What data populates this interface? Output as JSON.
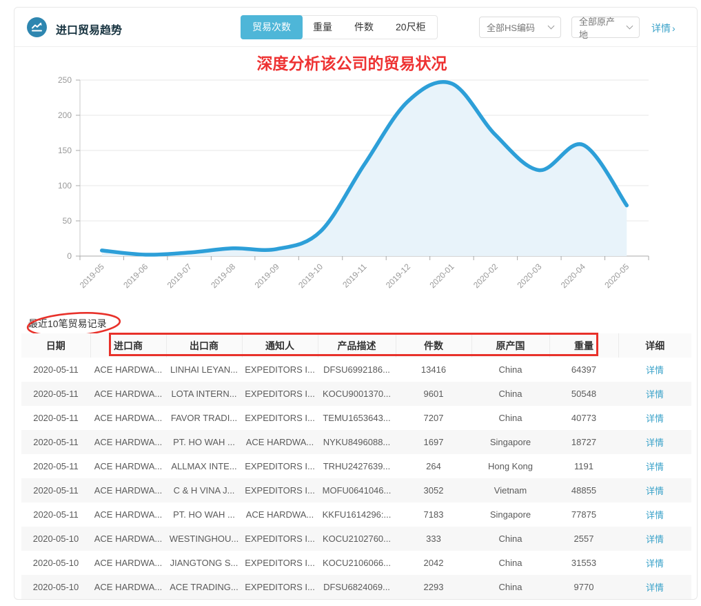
{
  "header": {
    "title": "进口贸易趋势",
    "tabs": [
      {
        "label": "贸易次数",
        "active": true
      },
      {
        "label": "重量",
        "active": false
      },
      {
        "label": "件数",
        "active": false
      },
      {
        "label": "20尺柜",
        "active": false
      }
    ],
    "filters": [
      {
        "value": "全部HS编码"
      },
      {
        "value": "全部原产地"
      }
    ],
    "details_link": "详情",
    "details_arrow": "›"
  },
  "annotations": {
    "chart_note": "深度分析该公司的贸易状况",
    "annotation_color": "#e8312a"
  },
  "chart_data": {
    "type": "area",
    "title": "",
    "x": [
      "2019-05",
      "2019-06",
      "2019-07",
      "2019-08",
      "2019-09",
      "2019-10",
      "2019-11",
      "2019-12",
      "2020-01",
      "2020-02",
      "2020-03",
      "2020-04",
      "2020-05"
    ],
    "series": [
      {
        "name": "贸易次数",
        "values": [
          8,
          2,
          5,
          11,
          10,
          35,
          130,
          220,
          245,
          172,
          122,
          158,
          72
        ]
      }
    ],
    "ylim": [
      0,
      250
    ],
    "yticks": [
      0,
      50,
      100,
      150,
      200,
      250
    ],
    "grid": true,
    "legend_position": "none",
    "line_color": "#2d9fd8",
    "fill_color": "#e8f3fa",
    "axis_color": "#a8a8a8",
    "grid_color": "#e7e7e7",
    "tick_label_color": "#999999"
  },
  "records": {
    "section_label": "最近10笔贸易记录",
    "columns": [
      "日期",
      "进口商",
      "出口商",
      "通知人",
      "产品描述",
      "件数",
      "原产国",
      "重量",
      "详细"
    ],
    "detail_label": "详情",
    "rows": [
      {
        "date": "2020-05-11",
        "importer": "ACE HARDWA...",
        "exporter": "LINHAI LEYAN...",
        "notify": "EXPEDITORS I...",
        "product": "DFSU6992186...",
        "pieces": "13416",
        "origin": "China",
        "weight": "64397"
      },
      {
        "date": "2020-05-11",
        "importer": "ACE HARDWA...",
        "exporter": "LOTA INTERN...",
        "notify": "EXPEDITORS I...",
        "product": "KOCU9001370...",
        "pieces": "9601",
        "origin": "China",
        "weight": "50548"
      },
      {
        "date": "2020-05-11",
        "importer": "ACE HARDWA...",
        "exporter": "FAVOR TRADI...",
        "notify": "EXPEDITORS I...",
        "product": "TEMU1653643...",
        "pieces": "7207",
        "origin": "China",
        "weight": "40773"
      },
      {
        "date": "2020-05-11",
        "importer": "ACE HARDWA...",
        "exporter": "PT. HO WAH ...",
        "notify": "ACE HARDWA...",
        "product": "NYKU8496088...",
        "pieces": "1697",
        "origin": "Singapore",
        "weight": "18727"
      },
      {
        "date": "2020-05-11",
        "importer": "ACE HARDWA...",
        "exporter": "ALLMAX INTE...",
        "notify": "EXPEDITORS I...",
        "product": "TRHU2427639...",
        "pieces": "264",
        "origin": "Hong Kong",
        "weight": "1191"
      },
      {
        "date": "2020-05-11",
        "importer": "ACE HARDWA...",
        "exporter": "C & H VINA J...",
        "notify": "EXPEDITORS I...",
        "product": "MOFU0641046...",
        "pieces": "3052",
        "origin": "Vietnam",
        "weight": "48855"
      },
      {
        "date": "2020-05-11",
        "importer": "ACE HARDWA...",
        "exporter": "PT. HO WAH ...",
        "notify": "ACE HARDWA...",
        "product": "KKFU1614296:...",
        "pieces": "7183",
        "origin": "Singapore",
        "weight": "77875"
      },
      {
        "date": "2020-05-10",
        "importer": "ACE HARDWA...",
        "exporter": "WESTINGHOU...",
        "notify": "EXPEDITORS I...",
        "product": "KOCU2102760...",
        "pieces": "333",
        "origin": "China",
        "weight": "2557"
      },
      {
        "date": "2020-05-10",
        "importer": "ACE HARDWA...",
        "exporter": "JIANGTONG S...",
        "notify": "EXPEDITORS I...",
        "product": "KOCU2106066...",
        "pieces": "2042",
        "origin": "China",
        "weight": "31553"
      },
      {
        "date": "2020-05-10",
        "importer": "ACE HARDWA...",
        "exporter": "ACE TRADING...",
        "notify": "EXPEDITORS I...",
        "product": "DFSU6824069...",
        "pieces": "2293",
        "origin": "China",
        "weight": "9770"
      }
    ]
  },
  "colors": {
    "accent_tab": "#4eb6d8",
    "link": "#3aa2c9",
    "logo": "#2e86b0"
  }
}
